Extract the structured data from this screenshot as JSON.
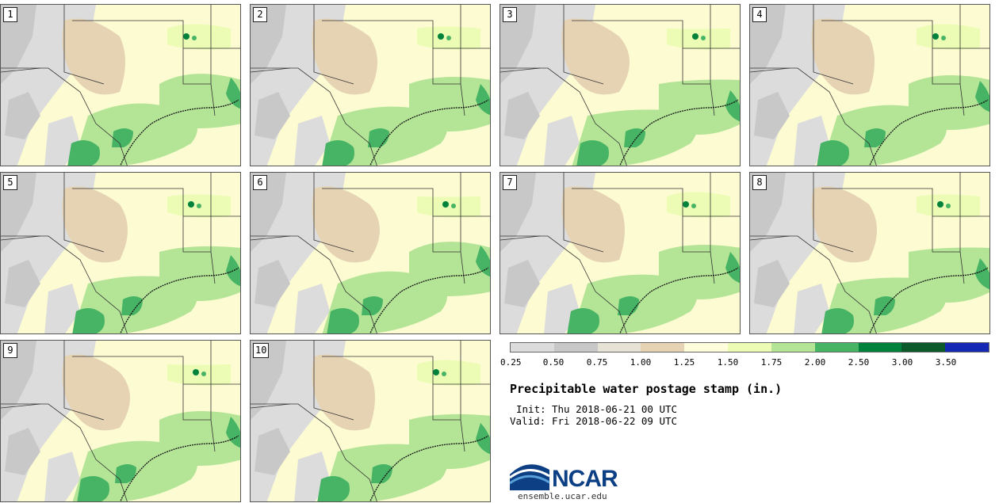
{
  "figure": {
    "title": "Precipitable water postage stamp (in.)",
    "init_label": "Init:",
    "init_value": "Thu 2018-06-21 00 UTC",
    "valid_label": "Valid:",
    "valid_value": "Fri 2018-06-22 09 UTC"
  },
  "members": [
    {
      "label": "1"
    },
    {
      "label": "2"
    },
    {
      "label": "3"
    },
    {
      "label": "4"
    },
    {
      "label": "5"
    },
    {
      "label": "6"
    },
    {
      "label": "7"
    },
    {
      "label": "8"
    },
    {
      "label": "9"
    },
    {
      "label": "10"
    }
  ],
  "colorbar": {
    "units": "in.",
    "tick_labels": [
      "0.25",
      "0.50",
      "0.75",
      "1.00",
      "1.25",
      "1.50",
      "1.75",
      "2.00",
      "2.50",
      "3.00",
      "3.50"
    ],
    "colors": [
      "#dcdcdc",
      "#c8c8c8",
      "#e6e2d6",
      "#e6d3b4",
      "#fefedc",
      "#ecfcb4",
      "#b4e496",
      "#46b464",
      "#00823c",
      "#0c5a2c",
      "#1428b4"
    ]
  },
  "logo": {
    "text": "NCAR",
    "url_text": "ensemble.ucar.edu"
  }
}
